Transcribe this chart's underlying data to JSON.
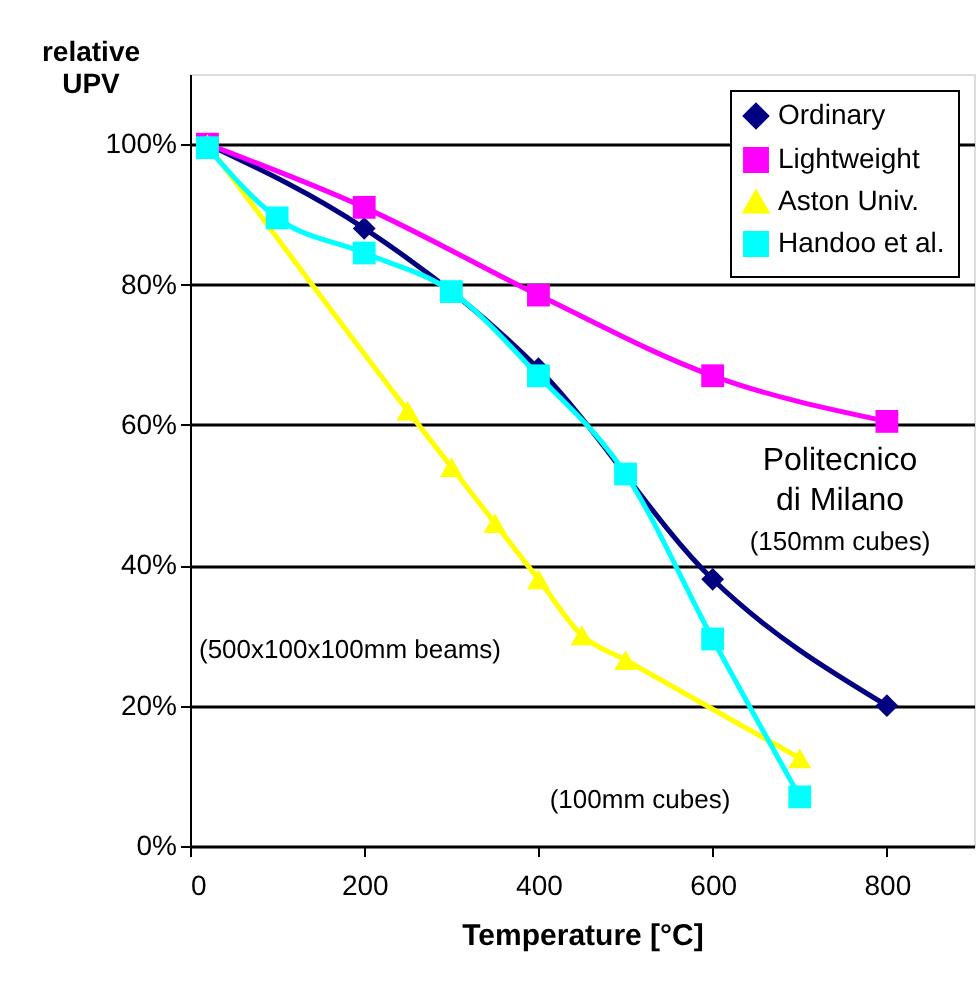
{
  "chart_data": {
    "type": "line",
    "xlabel": "Temperature [°C]",
    "ylabel": "relative UPV",
    "xlim": [
      0,
      900
    ],
    "xticks": [
      0,
      200,
      400,
      600,
      800
    ],
    "ylim": [
      0,
      110
    ],
    "yticks": [
      {
        "value": 0,
        "label": "0%"
      },
      {
        "value": 20,
        "label": "20%"
      },
      {
        "value": 40,
        "label": "40%"
      },
      {
        "value": 60,
        "label": "60%"
      },
      {
        "value": 80,
        "label": "80%"
      },
      {
        "value": 100,
        "label": "100%"
      }
    ],
    "grid": "y",
    "legend": "top right",
    "series": [
      {
        "name": "Ordinary",
        "color": "#000080",
        "marker": "diamond",
        "x": [
          20,
          200,
          400,
          600,
          800
        ],
        "values": [
          100,
          88,
          68,
          38,
          20
        ]
      },
      {
        "name": "Lightweight",
        "color": "#ff00ff",
        "marker": "square",
        "x": [
          20,
          200,
          400,
          600,
          800
        ],
        "values": [
          100,
          91,
          78.5,
          67,
          60.5
        ]
      },
      {
        "name": "Aston Univ.",
        "color": "#ffff00",
        "marker": "triangle",
        "x": [
          20,
          250,
          300,
          350,
          400,
          450,
          500,
          700
        ],
        "values": [
          100,
          62,
          54,
          46,
          38,
          30,
          26.5,
          12.5
        ]
      },
      {
        "name": "Handoo et al.",
        "color": "#00ffff",
        "marker": "square",
        "x": [
          20,
          100,
          200,
          300,
          400,
          500,
          600,
          700
        ],
        "values": [
          99.5,
          89.5,
          84.5,
          79,
          67,
          53,
          29.5,
          7
        ]
      }
    ],
    "annotations": [
      "Politecnico",
      "di Milano",
      "(150mm cubes)",
      "(500x100x100mm beams)",
      "(100mm cubes)"
    ]
  }
}
